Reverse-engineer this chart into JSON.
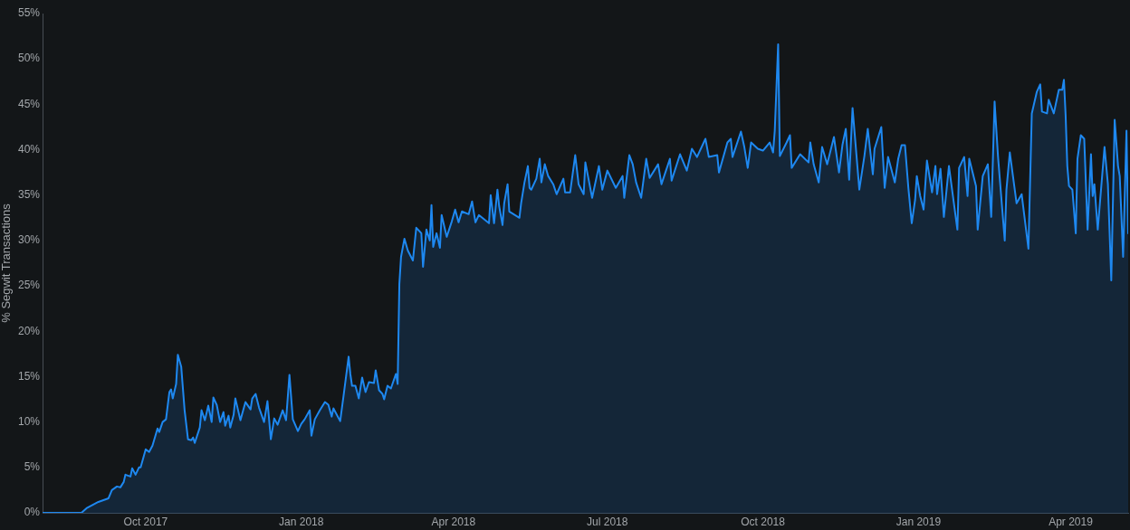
{
  "chart_data": {
    "type": "area",
    "ylabel": "% Segwit Transactions",
    "marker": "none",
    "xlim": [
      "2017-08-01",
      "2019-05-05"
    ],
    "xticks": [
      {
        "value": "2017-10-01",
        "label": "Oct 2017"
      },
      {
        "value": "2018-01-01",
        "label": "Jan 2018"
      },
      {
        "value": "2018-04-01",
        "label": "Apr 2018"
      },
      {
        "value": "2018-07-01",
        "label": "Jul 2018"
      },
      {
        "value": "2018-10-01",
        "label": "Oct 2018"
      },
      {
        "value": "2019-01-01",
        "label": "Jan 2019"
      },
      {
        "value": "2019-04-01",
        "label": "Apr 2019"
      }
    ],
    "ylim": [
      0,
      55
    ],
    "yticks": [
      {
        "value": 0,
        "label": "0%"
      },
      {
        "value": 5,
        "label": "5%"
      },
      {
        "value": 10,
        "label": "10%"
      },
      {
        "value": 15,
        "label": "15%"
      },
      {
        "value": 20,
        "label": "20%"
      },
      {
        "value": 25,
        "label": "25%"
      },
      {
        "value": 30,
        "label": "30%"
      },
      {
        "value": 35,
        "label": "35%"
      },
      {
        "value": 40,
        "label": "40%"
      },
      {
        "value": 45,
        "label": "45%"
      },
      {
        "value": 50,
        "label": "50%"
      },
      {
        "value": 55,
        "label": "55%"
      }
    ],
    "x": [
      "2017-08-01",
      "2017-08-24",
      "2017-08-27",
      "2017-09-03",
      "2017-09-09",
      "2017-09-11",
      "2017-09-14",
      "2017-09-16",
      "2017-09-18",
      "2017-09-19",
      "2017-09-22",
      "2017-09-23",
      "2017-09-25",
      "2017-09-27",
      "2017-09-28",
      "2017-10-01",
      "2017-10-03",
      "2017-10-05",
      "2017-10-08",
      "2017-10-09",
      "2017-10-11",
      "2017-10-13",
      "2017-10-15",
      "2017-10-16",
      "2017-10-17",
      "2017-10-19",
      "2017-10-20",
      "2017-10-22",
      "2017-10-24",
      "2017-10-26",
      "2017-10-28",
      "2017-10-29",
      "2017-10-30",
      "2017-11-02",
      "2017-11-03",
      "2017-11-05",
      "2017-11-07",
      "2017-11-09",
      "2017-11-10",
      "2017-11-12",
      "2017-11-14",
      "2017-11-16",
      "2017-11-17",
      "2017-11-19",
      "2017-11-20",
      "2017-11-22",
      "2017-11-23",
      "2017-11-26",
      "2017-11-29",
      "2017-12-02",
      "2017-12-03",
      "2017-12-05",
      "2017-12-07",
      "2017-12-10",
      "2017-12-12",
      "2017-12-14",
      "2017-12-16",
      "2017-12-18",
      "2017-12-21",
      "2017-12-23",
      "2017-12-25",
      "2017-12-27",
      "2017-12-30",
      "2018-01-01",
      "2018-01-03",
      "2018-01-06",
      "2018-01-07",
      "2018-01-09",
      "2018-01-12",
      "2018-01-15",
      "2018-01-17",
      "2018-01-19",
      "2018-01-20",
      "2018-01-24",
      "2018-01-26",
      "2018-01-29",
      "2018-01-30",
      "2018-01-31",
      "2018-02-02",
      "2018-02-04",
      "2018-02-06",
      "2018-02-08",
      "2018-02-10",
      "2018-02-13",
      "2018-02-14",
      "2018-02-16",
      "2018-02-18",
      "2018-02-19",
      "2018-02-21",
      "2018-02-23",
      "2018-02-26",
      "2018-02-27",
      "2018-02-28",
      "2018-03-01",
      "2018-03-03",
      "2018-03-05",
      "2018-03-08",
      "2018-03-10",
      "2018-03-13",
      "2018-03-14",
      "2018-03-16",
      "2018-03-18",
      "2018-03-19",
      "2018-03-20",
      "2018-03-22",
      "2018-03-24",
      "2018-03-25",
      "2018-03-28",
      "2018-03-31",
      "2018-04-02",
      "2018-04-04",
      "2018-04-06",
      "2018-04-10",
      "2018-04-12",
      "2018-04-14",
      "2018-04-16",
      "2018-04-22",
      "2018-04-23",
      "2018-04-25",
      "2018-04-27",
      "2018-04-28",
      "2018-04-30",
      "2018-05-01",
      "2018-05-03",
      "2018-05-04",
      "2018-05-10",
      "2018-05-11",
      "2018-05-13",
      "2018-05-15",
      "2018-05-16",
      "2018-05-17",
      "2018-05-20",
      "2018-05-22",
      "2018-05-23",
      "2018-05-25",
      "2018-05-27",
      "2018-05-30",
      "2018-06-01",
      "2018-06-05",
      "2018-06-06",
      "2018-06-09",
      "2018-06-12",
      "2018-06-14",
      "2018-06-17",
      "2018-06-18",
      "2018-06-22",
      "2018-06-26",
      "2018-06-28",
      "2018-07-01",
      "2018-07-06",
      "2018-07-10",
      "2018-07-11",
      "2018-07-14",
      "2018-07-16",
      "2018-07-18",
      "2018-07-21",
      "2018-07-24",
      "2018-07-26",
      "2018-07-31",
      "2018-08-02",
      "2018-08-07",
      "2018-08-08",
      "2018-08-13",
      "2018-08-15",
      "2018-08-17",
      "2018-08-20",
      "2018-08-23",
      "2018-08-28",
      "2018-08-30",
      "2018-09-04",
      "2018-09-05",
      "2018-09-10",
      "2018-09-12",
      "2018-09-13",
      "2018-09-18",
      "2018-09-20",
      "2018-09-22",
      "2018-09-24",
      "2018-09-28",
      "2018-10-01",
      "2018-10-05",
      "2018-10-07",
      "2018-10-08",
      "2018-10-10",
      "2018-10-11",
      "2018-10-15",
      "2018-10-17",
      "2018-10-18",
      "2018-10-23",
      "2018-10-28",
      "2018-10-29",
      "2018-10-31",
      "2018-11-03",
      "2018-11-05",
      "2018-11-08",
      "2018-11-12",
      "2018-11-15",
      "2018-11-17",
      "2018-11-19",
      "2018-11-21",
      "2018-11-23",
      "2018-11-27",
      "2018-11-30",
      "2018-12-02",
      "2018-12-05",
      "2018-12-06",
      "2018-12-10",
      "2018-12-12",
      "2018-12-14",
      "2018-12-18",
      "2018-12-20",
      "2018-12-22",
      "2018-12-24",
      "2018-12-26",
      "2018-12-28",
      "2018-12-30",
      "2018-12-31",
      "2019-01-02",
      "2019-01-04",
      "2019-01-06",
      "2019-01-09",
      "2019-01-11",
      "2019-01-12",
      "2019-01-14",
      "2019-01-16",
      "2019-01-19",
      "2019-01-24",
      "2019-01-25",
      "2019-01-28",
      "2019-01-30",
      "2019-01-31",
      "2019-02-04",
      "2019-02-05",
      "2019-02-08",
      "2019-02-11",
      "2019-02-13",
      "2019-02-15",
      "2019-02-17",
      "2019-02-21",
      "2019-02-22",
      "2019-02-24",
      "2019-02-28",
      "2019-03-03",
      "2019-03-07",
      "2019-03-09",
      "2019-03-12",
      "2019-03-14",
      "2019-03-15",
      "2019-03-18",
      "2019-03-19",
      "2019-03-22",
      "2019-03-25",
      "2019-03-27",
      "2019-03-28",
      "2019-03-29",
      "2019-03-30",
      "2019-03-31",
      "2019-04-02",
      "2019-04-04",
      "2019-04-05",
      "2019-04-07",
      "2019-04-09",
      "2019-04-11",
      "2019-04-13",
      "2019-04-14",
      "2019-04-15",
      "2019-04-17",
      "2019-04-21",
      "2019-04-23",
      "2019-04-25",
      "2019-04-27",
      "2019-04-29",
      "2019-04-30",
      "2019-05-02",
      "2019-05-04",
      "2019-05-05"
    ],
    "series": [
      {
        "color": "#1e88f0",
        "values": [
          0,
          0,
          0.5,
          1.2,
          1.6,
          2.5,
          2.9,
          2.8,
          3.4,
          4.2,
          4.0,
          4.9,
          4.2,
          5.0,
          5.0,
          7.0,
          6.7,
          7.4,
          9.3,
          8.9,
          10.0,
          10.3,
          13.3,
          13.6,
          12.6,
          14.2,
          17.4,
          16.1,
          11.3,
          8.1,
          8.0,
          8.3,
          7.7,
          9.4,
          11.3,
          10.2,
          11.8,
          10.0,
          12.7,
          11.9,
          10.0,
          11.1,
          9.6,
          10.7,
          9.4,
          10.8,
          12.6,
          10.2,
          12.2,
          11.4,
          12.6,
          13.1,
          11.6,
          10.0,
          12.3,
          8.1,
          10.4,
          9.7,
          11.3,
          10.2,
          15.2,
          10.3,
          9.0,
          9.8,
          10.3,
          11.3,
          8.5,
          10.3,
          11.3,
          12.2,
          11.9,
          10.6,
          11.5,
          10.1,
          12.9,
          17.2,
          15.3,
          14.0,
          14.0,
          12.6,
          14.9,
          13.3,
          14.4,
          14.3,
          15.7,
          13.5,
          13.1,
          12.5,
          14.0,
          13.7,
          15.3,
          14.2,
          25.2,
          28.2,
          30.2,
          28.9,
          27.8,
          31.4,
          30.8,
          27.1,
          31.2,
          30.0,
          33.9,
          29.3,
          30.8,
          29.2,
          32.8,
          30.4,
          32.1,
          33.4,
          32.0,
          33.2,
          32.9,
          34.3,
          32.0,
          32.8,
          31.9,
          35.0,
          31.9,
          35.6,
          33.8,
          31.7,
          34.1,
          36.2,
          33.2,
          32.5,
          34.1,
          36.4,
          38.2,
          35.8,
          35.6,
          36.8,
          39.0,
          36.4,
          38.4,
          37.1,
          36.2,
          35.1,
          36.8,
          35.3,
          35.3,
          39.4,
          36.2,
          35.1,
          38.6,
          34.7,
          38.2,
          35.6,
          37.7,
          35.8,
          37.1,
          34.7,
          39.4,
          38.4,
          36.4,
          34.7,
          39.0,
          36.9,
          38.4,
          36.2,
          39.0,
          36.6,
          39.5,
          38.6,
          37.7,
          40.1,
          39.2,
          41.2,
          39.2,
          39.4,
          37.5,
          40.8,
          41.2,
          39.2,
          42.0,
          40.3,
          38.0,
          40.8,
          40.1,
          39.9,
          40.8,
          39.7,
          42.1,
          51.6,
          39.3,
          40.8,
          41.6,
          38.0,
          39.5,
          38.6,
          40.8,
          38.4,
          36.4,
          40.3,
          38.4,
          41.4,
          37.5,
          40.5,
          42.3,
          36.7,
          44.6,
          35.6,
          39.3,
          42.3,
          37.3,
          40.1,
          42.5,
          35.8,
          39.2,
          36.4,
          39.0,
          40.5,
          40.5,
          35.8,
          31.9,
          34.5,
          37.1,
          34.9,
          33.4,
          38.8,
          35.3,
          38.2,
          35.1,
          37.9,
          32.6,
          38.2,
          31.2,
          38.0,
          39.2,
          34.9,
          39.0,
          36.0,
          31.2,
          37.1,
          38.4,
          32.6,
          45.3,
          39.3,
          30.0,
          35.6,
          39.7,
          34.1,
          35.1,
          29.1,
          44.0,
          46.4,
          47.2,
          44.2,
          44.0,
          45.5,
          44.0,
          46.6,
          46.6,
          47.7,
          43.8,
          38.2,
          36.0,
          35.6,
          30.8,
          39.0,
          41.6,
          41.2,
          31.2,
          39.5,
          34.9,
          36.2,
          31.2,
          40.3,
          36.2,
          25.6,
          43.3,
          38.2,
          37.1,
          28.2,
          42.1,
          30.8
        ]
      }
    ]
  }
}
